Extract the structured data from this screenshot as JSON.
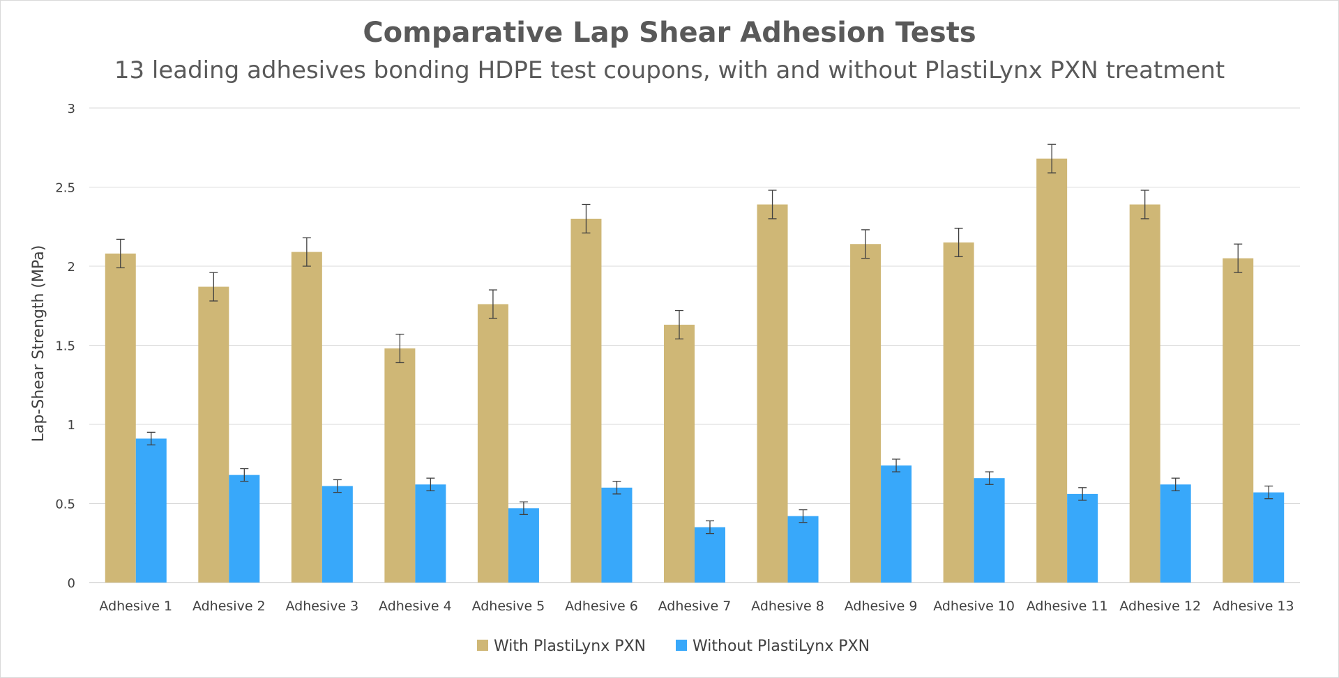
{
  "chart_data": {
    "type": "bar",
    "title": "Comparative Lap Shear Adhesion Tests",
    "subtitle": "13 leading adhesives bonding HDPE test coupons, with and without PlastiLynx PXN treatment",
    "xlabel": "",
    "ylabel": "Lap-Shear Strength (MPa)",
    "ylim": [
      0,
      3
    ],
    "yticks": [
      "0",
      "0.5",
      "1",
      "1.5",
      "2",
      "2.5",
      "3"
    ],
    "grid": true,
    "legend_position": "bottom",
    "categories": [
      "Adhesive 1",
      "Adhesive 2",
      "Adhesive 3",
      "Adhesive 4",
      "Adhesive 5",
      "Adhesive 6",
      "Adhesive 7",
      "Adhesive 8",
      "Adhesive 9",
      "Adhesive 10",
      "Adhesive 11",
      "Adhesive 12",
      "Adhesive 13"
    ],
    "series": [
      {
        "name": "With PlastiLynx PXN",
        "color": "#CFB776",
        "values": [
          2.08,
          1.87,
          2.09,
          1.48,
          1.76,
          2.3,
          1.63,
          2.39,
          2.14,
          2.15,
          2.68,
          2.39,
          2.05
        ],
        "error": [
          0.09,
          0.09,
          0.09,
          0.09,
          0.09,
          0.09,
          0.09,
          0.09,
          0.09,
          0.09,
          0.09,
          0.09,
          0.09
        ]
      },
      {
        "name": "Without PlastiLynx PXN",
        "color": "#38A8FA",
        "values": [
          0.91,
          0.68,
          0.61,
          0.62,
          0.47,
          0.6,
          0.35,
          0.42,
          0.74,
          0.66,
          0.56,
          0.62,
          0.57
        ],
        "error": [
          0.04,
          0.04,
          0.04,
          0.04,
          0.04,
          0.04,
          0.04,
          0.04,
          0.04,
          0.04,
          0.04,
          0.04,
          0.04
        ]
      }
    ]
  }
}
